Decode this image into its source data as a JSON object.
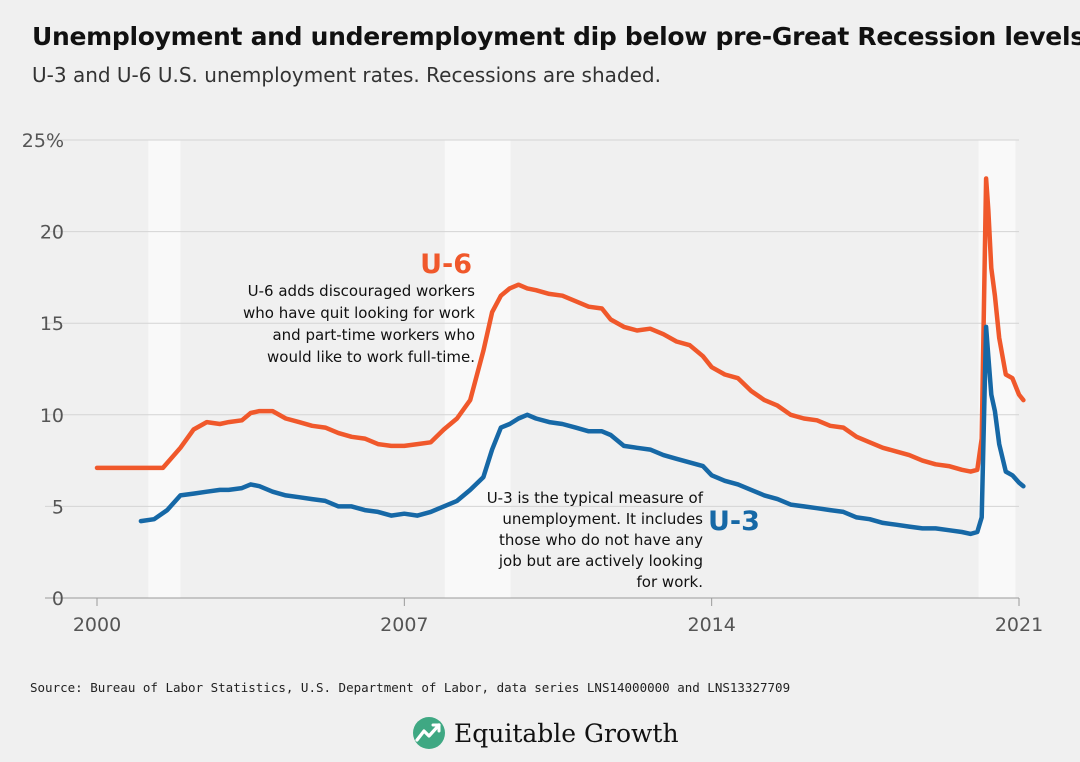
{
  "header": {
    "title": "Unemployment and underemployment dip below pre-Great Recession levels",
    "subtitle": "U-3 and U-6 U.S. unemployment rates. Recessions are shaded."
  },
  "footer": {
    "source": "Source: Bureau of Labor Statistics, U.S. Department of Labor, data series LNS14000000 and LNS13327709",
    "brand": "Equitable Growth"
  },
  "annotations": {
    "u6_label": "U-6",
    "u6_note": [
      "U-6 adds discouraged workers",
      "who have quit looking for work",
      "and part-time workers who",
      "would like to work full-time."
    ],
    "u3_label": "U-3",
    "u3_note": [
      "U-3 is the typical measure of",
      "unemployment. It includes",
      "those who do not have any",
      "job but are actively looking",
      "for work."
    ]
  },
  "colors": {
    "u6": "#f0582b",
    "u3": "#1668a6",
    "recession": "#f9f9f9",
    "grid": "#d4d4d4",
    "brand_icon": "#3fa883"
  },
  "chart_data": {
    "type": "line",
    "title": "Unemployment and underemployment dip below pre-Great Recession levels",
    "subtitle": "U-3 and U-6 U.S. unemployment rates. Recessions are shaded.",
    "xlim": [
      2000,
      2021.1
    ],
    "ylim": [
      0,
      25
    ],
    "x_ticks": [
      2000,
      2007,
      2014,
      2021
    ],
    "x_tick_labels": [
      "2000",
      "2007",
      "2014",
      "2021"
    ],
    "y_ticks": [
      0,
      5,
      10,
      15,
      20,
      25
    ],
    "y_tick_labels": [
      "0",
      "5",
      "10",
      "15",
      "20",
      "25%"
    ],
    "grid": "horizontal",
    "recessions": [
      [
        2001.17,
        2001.9
      ],
      [
        2007.92,
        2009.42
      ],
      [
        2020.08,
        2020.92
      ]
    ],
    "series": [
      {
        "name": "U-6",
        "x": [
          2000.0,
          2000.8,
          2001.5,
          2001.9,
          2002.2,
          2002.5,
          2002.8,
          2003.0,
          2003.3,
          2003.5,
          2003.7,
          2004.0,
          2004.3,
          2004.6,
          2004.9,
          2005.2,
          2005.5,
          2005.8,
          2006.1,
          2006.4,
          2006.7,
          2007.0,
          2007.3,
          2007.6,
          2007.9,
          2008.2,
          2008.5,
          2008.8,
          2009.0,
          2009.2,
          2009.4,
          2009.6,
          2009.8,
          2010.0,
          2010.3,
          2010.6,
          2010.9,
          2011.2,
          2011.5,
          2011.7,
          2012.0,
          2012.3,
          2012.6,
          2012.9,
          2013.2,
          2013.5,
          2013.8,
          2014.0,
          2014.3,
          2014.6,
          2014.9,
          2015.2,
          2015.5,
          2015.8,
          2016.1,
          2016.4,
          2016.7,
          2017.0,
          2017.3,
          2017.6,
          2017.9,
          2018.2,
          2018.5,
          2018.8,
          2019.1,
          2019.4,
          2019.7,
          2019.9,
          2020.05,
          2020.15,
          2020.25,
          2020.3,
          2020.37,
          2020.45,
          2020.55,
          2020.7,
          2020.85,
          2021.0,
          2021.1
        ],
        "values": [
          7.1,
          7.1,
          7.1,
          8.2,
          9.2,
          9.6,
          9.5,
          9.6,
          9.7,
          10.1,
          10.2,
          10.2,
          9.8,
          9.6,
          9.4,
          9.3,
          9.0,
          8.8,
          8.7,
          8.4,
          8.3,
          8.3,
          8.4,
          8.5,
          9.2,
          9.8,
          10.8,
          13.5,
          15.6,
          16.5,
          16.9,
          17.1,
          16.9,
          16.8,
          16.6,
          16.5,
          16.2,
          15.9,
          15.8,
          15.2,
          14.8,
          14.6,
          14.7,
          14.4,
          14.0,
          13.8,
          13.2,
          12.6,
          12.2,
          12.0,
          11.3,
          10.8,
          10.5,
          10.0,
          9.8,
          9.7,
          9.4,
          9.3,
          8.8,
          8.5,
          8.2,
          8.0,
          7.8,
          7.5,
          7.3,
          7.2,
          7.0,
          6.9,
          7.0,
          8.7,
          22.9,
          21.2,
          18.0,
          16.5,
          14.2,
          12.2,
          12.0,
          11.1,
          10.8
        ]
      },
      {
        "name": "U-3",
        "x": [
          2001.0,
          2001.3,
          2001.6,
          2001.9,
          2002.2,
          2002.5,
          2002.8,
          2003.0,
          2003.3,
          2003.5,
          2003.7,
          2004.0,
          2004.3,
          2004.6,
          2004.9,
          2005.2,
          2005.5,
          2005.8,
          2006.1,
          2006.4,
          2006.7,
          2007.0,
          2007.3,
          2007.6,
          2007.9,
          2008.2,
          2008.5,
          2008.8,
          2009.0,
          2009.2,
          2009.4,
          2009.6,
          2009.8,
          2010.0,
          2010.3,
          2010.6,
          2010.9,
          2011.2,
          2011.5,
          2011.7,
          2012.0,
          2012.3,
          2012.6,
          2012.9,
          2013.2,
          2013.5,
          2013.8,
          2014.0,
          2014.3,
          2014.6,
          2014.9,
          2015.2,
          2015.5,
          2015.8,
          2016.1,
          2016.4,
          2016.7,
          2017.0,
          2017.3,
          2017.6,
          2017.9,
          2018.2,
          2018.5,
          2018.8,
          2019.1,
          2019.4,
          2019.7,
          2019.9,
          2020.05,
          2020.15,
          2020.25,
          2020.3,
          2020.37,
          2020.45,
          2020.55,
          2020.7,
          2020.85,
          2021.0,
          2021.1
        ],
        "values": [
          4.2,
          4.3,
          4.8,
          5.6,
          5.7,
          5.8,
          5.9,
          5.9,
          6.0,
          6.2,
          6.1,
          5.8,
          5.6,
          5.5,
          5.4,
          5.3,
          5.0,
          5.0,
          4.8,
          4.7,
          4.5,
          4.6,
          4.5,
          4.7,
          5.0,
          5.3,
          5.9,
          6.6,
          8.1,
          9.3,
          9.5,
          9.8,
          10.0,
          9.8,
          9.6,
          9.5,
          9.3,
          9.1,
          9.1,
          8.9,
          8.3,
          8.2,
          8.1,
          7.8,
          7.6,
          7.4,
          7.2,
          6.7,
          6.4,
          6.2,
          5.9,
          5.6,
          5.4,
          5.1,
          5.0,
          4.9,
          4.8,
          4.7,
          4.4,
          4.3,
          4.1,
          4.0,
          3.9,
          3.8,
          3.8,
          3.7,
          3.6,
          3.5,
          3.6,
          4.4,
          14.8,
          13.2,
          11.1,
          10.2,
          8.4,
          6.9,
          6.7,
          6.3,
          6.1
        ]
      }
    ]
  }
}
